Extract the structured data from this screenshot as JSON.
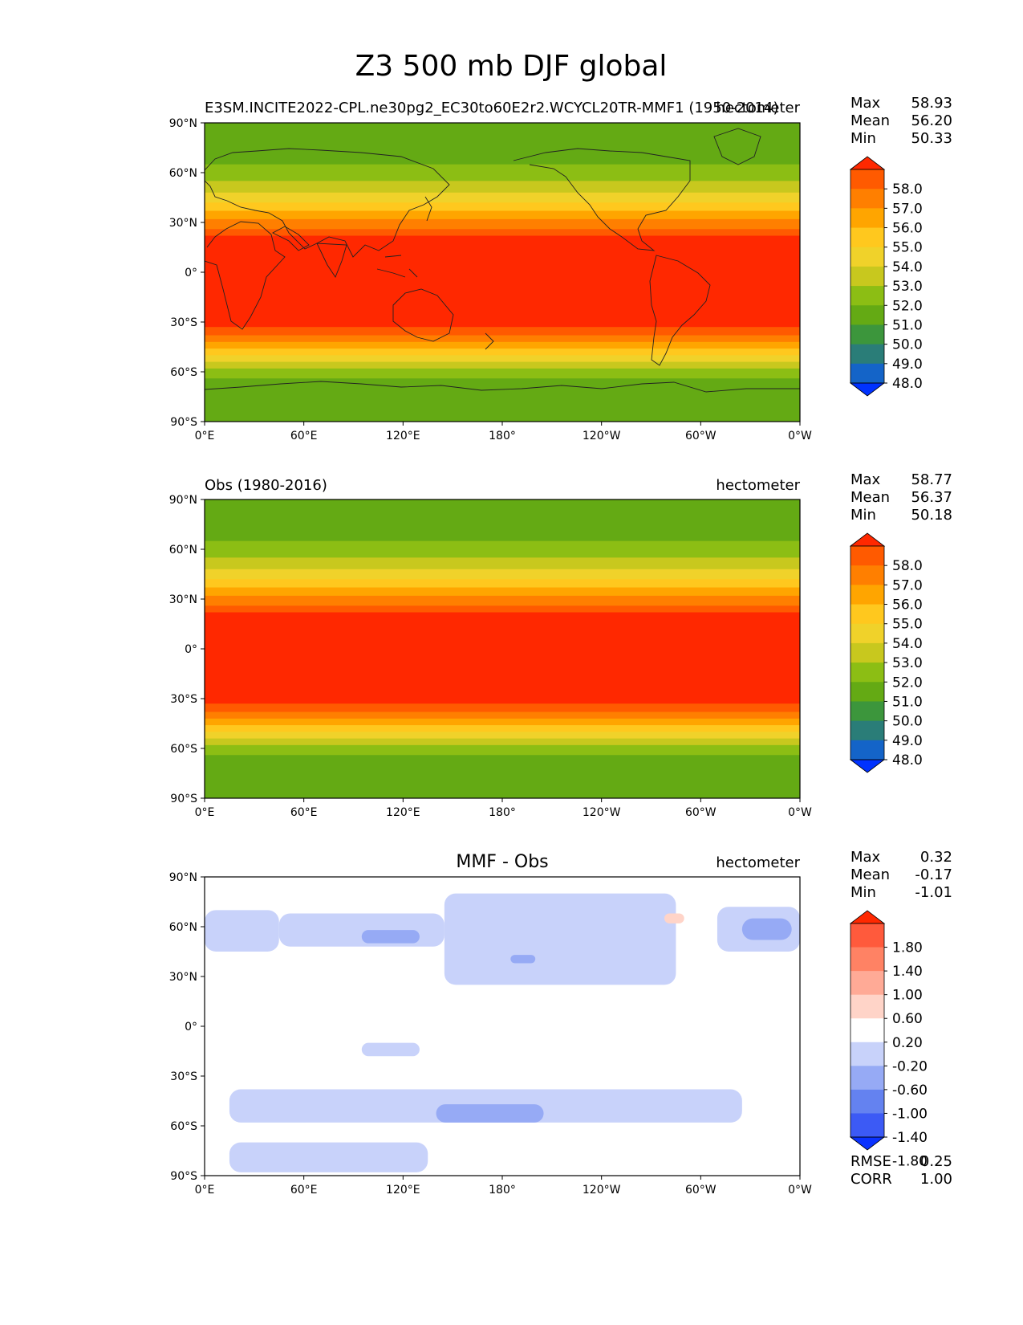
{
  "figure_title": "Z3 500 mb DJF global",
  "panels": [
    {
      "left_title": "E3SM.INCITE2022-CPL.ne30pg2_EC30to60E2r2.WCYCL20TR-MMF1 (1950-2014)",
      "center_title": "",
      "right_title": "hectometer",
      "stats_labels": [
        "Max",
        "Mean",
        "Min"
      ],
      "stats_values": [
        "58.93",
        "56.20",
        "50.33"
      ],
      "extra_labels": [],
      "extra_values": []
    },
    {
      "left_title": "Obs (1980-2016)",
      "center_title": "",
      "right_title": "hectometer",
      "stats_labels": [
        "Max",
        "Mean",
        "Min"
      ],
      "stats_values": [
        "58.77",
        "56.37",
        "50.18"
      ],
      "extra_labels": [],
      "extra_values": []
    },
    {
      "left_title": "",
      "center_title": "MMF - Obs",
      "right_title": "hectometer",
      "stats_labels": [
        "Max",
        "Mean",
        "Min"
      ],
      "stats_values": [
        "0.32",
        "-0.17",
        "-1.01"
      ],
      "extra_labels": [
        "RMSE",
        "CORR"
      ],
      "extra_values": [
        "0.25",
        "1.00"
      ]
    }
  ],
  "chart_data": [
    {
      "type": "heatmap",
      "title": "E3SM.INCITE2022-CPL.ne30pg2_EC30to60E2r2.WCYCL20TR-MMF1 (1950-2014)",
      "units": "hectometer",
      "x_ticks": [
        "0°E",
        "60°E",
        "120°E",
        "180°",
        "120°W",
        "60°W",
        "0°W"
      ],
      "y_ticks": [
        "90°N",
        "60°N",
        "30°N",
        "0°",
        "30°S",
        "60°S",
        "90°S"
      ],
      "xlim": [
        0,
        360
      ],
      "ylim": [
        -90,
        90
      ],
      "colorbar_levels": [
        "58.0",
        "57.0",
        "56.0",
        "55.0",
        "54.0",
        "53.0",
        "52.0",
        "51.0",
        "50.0",
        "49.0",
        "48.0"
      ],
      "colorbar_colors": [
        "#ff2800",
        "#ff5a00",
        "#ff7f00",
        "#ffa500",
        "#ffc81e",
        "#f0d22a",
        "#c8c81e",
        "#8cbe14",
        "#64aa14",
        "#3c963c",
        "#2a7d78",
        "#1464c8",
        "#0032ff"
      ],
      "lat_bands": [
        {
          "lat_min": 65,
          "lat_max": 90,
          "value": 50.5
        },
        {
          "lat_min": 55,
          "lat_max": 65,
          "value": 51.5
        },
        {
          "lat_min": 48,
          "lat_max": 55,
          "value": 52.5
        },
        {
          "lat_min": 42,
          "lat_max": 48,
          "value": 53.5
        },
        {
          "lat_min": 37,
          "lat_max": 42,
          "value": 54.5
        },
        {
          "lat_min": 32,
          "lat_max": 37,
          "value": 55.5
        },
        {
          "lat_min": 26,
          "lat_max": 32,
          "value": 56.5
        },
        {
          "lat_min": 22,
          "lat_max": 26,
          "value": 57.5
        },
        {
          "lat_min": -33,
          "lat_max": 22,
          "value": 58.5
        },
        {
          "lat_min": -38,
          "lat_max": -33,
          "value": 57.5
        },
        {
          "lat_min": -42,
          "lat_max": -38,
          "value": 56.5
        },
        {
          "lat_min": -46,
          "lat_max": -42,
          "value": 55.5
        },
        {
          "lat_min": -50,
          "lat_max": -46,
          "value": 54.5
        },
        {
          "lat_min": -54,
          "lat_max": -50,
          "value": 53.5
        },
        {
          "lat_min": -58,
          "lat_max": -54,
          "value": 52.5
        },
        {
          "lat_min": -64,
          "lat_max": -58,
          "value": 51.5
        },
        {
          "lat_min": -90,
          "lat_max": -64,
          "value": 50.5
        }
      ]
    },
    {
      "type": "heatmap",
      "title": "Obs (1980-2016)",
      "units": "hectometer",
      "x_ticks": [
        "0°E",
        "60°E",
        "120°E",
        "180°",
        "120°W",
        "60°W",
        "0°W"
      ],
      "y_ticks": [
        "90°N",
        "60°N",
        "30°N",
        "0°",
        "30°S",
        "60°S",
        "90°S"
      ],
      "xlim": [
        0,
        360
      ],
      "ylim": [
        -90,
        90
      ],
      "colorbar_levels": [
        "58.0",
        "57.0",
        "56.0",
        "55.0",
        "54.0",
        "53.0",
        "52.0",
        "51.0",
        "50.0",
        "49.0",
        "48.0"
      ],
      "colorbar_colors": [
        "#ff2800",
        "#ff5a00",
        "#ff7f00",
        "#ffa500",
        "#ffc81e",
        "#f0d22a",
        "#c8c81e",
        "#8cbe14",
        "#64aa14",
        "#3c963c",
        "#2a7d78",
        "#1464c8",
        "#0032ff"
      ],
      "lat_bands": [
        {
          "lat_min": 65,
          "lat_max": 90,
          "value": 50.5
        },
        {
          "lat_min": 55,
          "lat_max": 65,
          "value": 51.5
        },
        {
          "lat_min": 48,
          "lat_max": 55,
          "value": 52.5
        },
        {
          "lat_min": 42,
          "lat_max": 48,
          "value": 53.5
        },
        {
          "lat_min": 37,
          "lat_max": 42,
          "value": 54.5
        },
        {
          "lat_min": 32,
          "lat_max": 37,
          "value": 55.5
        },
        {
          "lat_min": 26,
          "lat_max": 32,
          "value": 56.5
        },
        {
          "lat_min": 22,
          "lat_max": 26,
          "value": 57.5
        },
        {
          "lat_min": -33,
          "lat_max": 22,
          "value": 58.5
        },
        {
          "lat_min": -38,
          "lat_max": -33,
          "value": 57.5
        },
        {
          "lat_min": -42,
          "lat_max": -38,
          "value": 56.5
        },
        {
          "lat_min": -46,
          "lat_max": -42,
          "value": 55.5
        },
        {
          "lat_min": -50,
          "lat_max": -46,
          "value": 54.5
        },
        {
          "lat_min": -54,
          "lat_max": -50,
          "value": 53.5
        },
        {
          "lat_min": -58,
          "lat_max": -54,
          "value": 52.5
        },
        {
          "lat_min": -64,
          "lat_max": -58,
          "value": 51.5
        },
        {
          "lat_min": -90,
          "lat_max": -64,
          "value": 50.5
        }
      ]
    },
    {
      "type": "heatmap",
      "title": "MMF - Obs",
      "units": "hectometer",
      "x_ticks": [
        "0°E",
        "60°E",
        "120°E",
        "180°",
        "120°W",
        "60°W",
        "0°W"
      ],
      "y_ticks": [
        "90°N",
        "60°N",
        "30°N",
        "0°",
        "30°S",
        "60°S",
        "90°S"
      ],
      "xlim": [
        0,
        360
      ],
      "ylim": [
        -90,
        90
      ],
      "colorbar_levels": [
        "1.80",
        "1.40",
        "1.00",
        "0.60",
        "0.20",
        "-0.20",
        "-0.60",
        "-1.00",
        "-1.40",
        "-1.80"
      ],
      "colorbar_colors": [
        "#ff2800",
        "#ff5a3c",
        "#ff8264",
        "#ffaa96",
        "#ffd4c8",
        "#ffffff",
        "#c8d2fa",
        "#96aaf5",
        "#6482f0",
        "#3c5af5",
        "#0a32ff"
      ],
      "background_value": 0.0,
      "anomaly_regions": [
        {
          "lon_min": 0,
          "lon_max": 45,
          "lat_min": 45,
          "lat_max": 70,
          "value": -0.4
        },
        {
          "lon_min": 45,
          "lon_max": 145,
          "lat_min": 48,
          "lat_max": 68,
          "value": -0.4
        },
        {
          "lon_min": 145,
          "lon_max": 285,
          "lat_min": 25,
          "lat_max": 80,
          "value": -0.4
        },
        {
          "lon_min": 95,
          "lon_max": 130,
          "lat_min": 50,
          "lat_max": 58,
          "value": -0.8
        },
        {
          "lon_min": 185,
          "lon_max": 200,
          "lat_min": 38,
          "lat_max": 43,
          "value": -0.8
        },
        {
          "lon_min": 310,
          "lon_max": 360,
          "lat_min": 45,
          "lat_max": 72,
          "value": -0.4
        },
        {
          "lon_min": 325,
          "lon_max": 355,
          "lat_min": 52,
          "lat_max": 65,
          "value": -0.8
        },
        {
          "lon_min": 15,
          "lon_max": 325,
          "lat_min": -58,
          "lat_max": -38,
          "value": -0.4
        },
        {
          "lon_min": 140,
          "lon_max": 205,
          "lat_min": -58,
          "lat_max": -47,
          "value": -0.8
        },
        {
          "lon_min": 15,
          "lon_max": 135,
          "lat_min": -88,
          "lat_max": -70,
          "value": -0.4
        },
        {
          "lon_min": 95,
          "lon_max": 130,
          "lat_min": -18,
          "lat_max": -10,
          "value": -0.4
        },
        {
          "lon_min": 278,
          "lon_max": 290,
          "lat_min": 62,
          "lat_max": 68,
          "value": 0.3
        }
      ]
    }
  ]
}
